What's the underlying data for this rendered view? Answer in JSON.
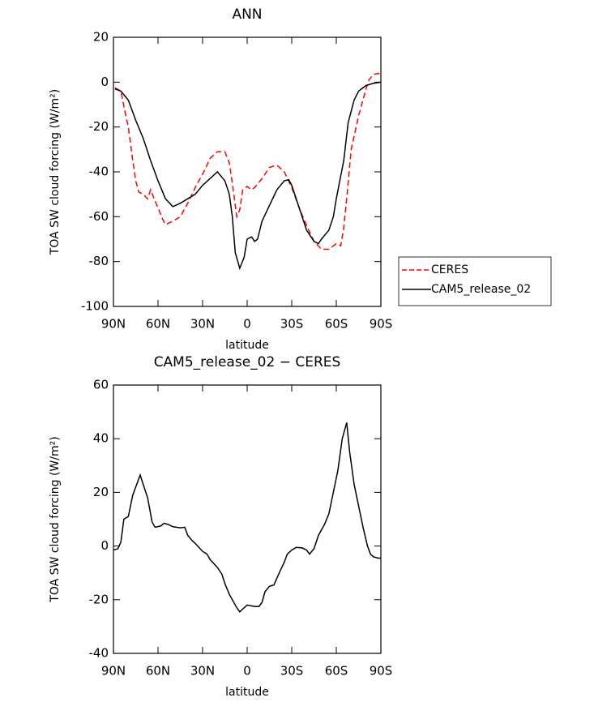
{
  "chart_data": [
    {
      "type": "line",
      "title": "ANN",
      "xlabel": "latitude",
      "ylabel": "TOA SW cloud forcing (W/m²)",
      "xlim": [
        90,
        -90
      ],
      "ylim": [
        -100,
        20
      ],
      "xticks": [
        {
          "value": 90,
          "label": "90N"
        },
        {
          "value": 60,
          "label": "60N"
        },
        {
          "value": 30,
          "label": "30N"
        },
        0,
        {
          "value": -30,
          "label": "30S"
        },
        {
          "value": -60,
          "label": "60S"
        },
        {
          "value": -90,
          "label": "90S"
        }
      ],
      "yticks": [
        20,
        0,
        -20,
        -40,
        -60,
        -80,
        -100
      ],
      "legend": "right",
      "series": [
        {
          "name": "CERES",
          "color": "#ff0000",
          "style": "dashed",
          "x": [
            89,
            85,
            82,
            80,
            77,
            75,
            73,
            70,
            67,
            65,
            62,
            60,
            57,
            55,
            50,
            45,
            40,
            35,
            30,
            27,
            25,
            20,
            15,
            12,
            10,
            8,
            7,
            5,
            3,
            0,
            -3,
            -5,
            -10,
            -15,
            -20,
            -25,
            -30,
            -35,
            -40,
            -45,
            -50,
            -55,
            -60,
            -63,
            -65,
            -68,
            -70,
            -75,
            -80,
            -82,
            -85,
            -90
          ],
          "values": [
            -2.5,
            -4,
            -14,
            -20,
            -35,
            -44,
            -49,
            -50,
            -52,
            -48,
            -53,
            -56,
            -61,
            -63.5,
            -62,
            -60,
            -54,
            -47,
            -41,
            -37,
            -34,
            -31,
            -31,
            -36,
            -45,
            -55,
            -60,
            -57,
            -48,
            -46.5,
            -48,
            -47,
            -43,
            -38,
            -37,
            -40,
            -47,
            -56,
            -64,
            -71,
            -74.5,
            -74.5,
            -72,
            -73,
            -65,
            -45,
            -30,
            -15,
            -3,
            1,
            3.5,
            4
          ]
        },
        {
          "name": "CAM5_release_02",
          "color": "#000000",
          "style": "solid",
          "x": [
            89,
            85,
            80,
            75,
            70,
            65,
            60,
            55,
            50,
            45,
            40,
            35,
            30,
            25,
            20,
            15,
            12,
            10,
            8,
            5,
            2,
            0,
            -3,
            -5,
            -7,
            -10,
            -15,
            -20,
            -25,
            -28,
            -30,
            -35,
            -40,
            -45,
            -48,
            -50,
            -55,
            -58,
            -60,
            -65,
            -68,
            -72,
            -75,
            -80,
            -85,
            -90
          ],
          "values": [
            -3,
            -4,
            -8,
            -17,
            -25,
            -35,
            -44,
            -52,
            -55.5,
            -54,
            -52,
            -50,
            -46,
            -43,
            -40,
            -44,
            -50,
            -60,
            -76,
            -83,
            -78,
            -70,
            -69,
            -71,
            -70,
            -62,
            -55,
            -48,
            -44,
            -43.5,
            -46,
            -56,
            -66,
            -71,
            -72,
            -70,
            -66,
            -60,
            -52,
            -35,
            -18,
            -8,
            -4,
            -1.5,
            -0.5,
            0
          ]
        }
      ]
    },
    {
      "type": "line",
      "title": "CAM5_release_02 − CERES",
      "xlabel": "latitude",
      "ylabel": "TOA SW cloud forcing (W/m²)",
      "xlim": [
        90,
        -90
      ],
      "ylim": [
        -40,
        60
      ],
      "xticks": [
        {
          "value": 90,
          "label": "90N"
        },
        {
          "value": 60,
          "label": "60N"
        },
        {
          "value": 30,
          "label": "30N"
        },
        0,
        {
          "value": -30,
          "label": "30S"
        },
        {
          "value": -60,
          "label": "60S"
        },
        {
          "value": -90,
          "label": "90S"
        }
      ],
      "yticks": [
        60,
        40,
        20,
        0,
        -20,
        -40
      ],
      "color": "#000000",
      "x": [
        90,
        87,
        85,
        83,
        80,
        77,
        73,
        72,
        70,
        67,
        64,
        62,
        58,
        56,
        53,
        50,
        45,
        42,
        40,
        37,
        35,
        30,
        27,
        25,
        20,
        17,
        15,
        12,
        10,
        7,
        5,
        3,
        0,
        -5,
        -8,
        -10,
        -12,
        -15,
        -18,
        -20,
        -22,
        -25,
        -27,
        -30,
        -33,
        -37,
        -40,
        -42,
        -45,
        -48,
        -52,
        -55,
        -58,
        -61,
        -64,
        -67,
        -69,
        -72,
        -75,
        -78,
        -81,
        -83,
        -85,
        -88,
        -90
      ],
      "values": [
        -1.5,
        -1,
        1.5,
        10,
        11,
        19,
        25,
        26.5,
        23,
        18,
        9,
        7,
        7.5,
        8.5,
        8,
        7.2,
        6.8,
        7,
        4,
        2,
        1,
        -2,
        -3,
        -5,
        -8,
        -10.5,
        -14,
        -18,
        -20,
        -23,
        -24.5,
        -23.5,
        -22,
        -22.5,
        -22.5,
        -21,
        -17,
        -15,
        -14.5,
        -12,
        -9.5,
        -6,
        -3,
        -1.5,
        -0.5,
        -0.7,
        -1.5,
        -3,
        -1,
        4,
        8,
        12,
        20,
        28,
        40,
        46,
        35,
        23,
        15,
        7,
        0,
        -3,
        -4,
        -4.5,
        -4.5
      ]
    }
  ]
}
